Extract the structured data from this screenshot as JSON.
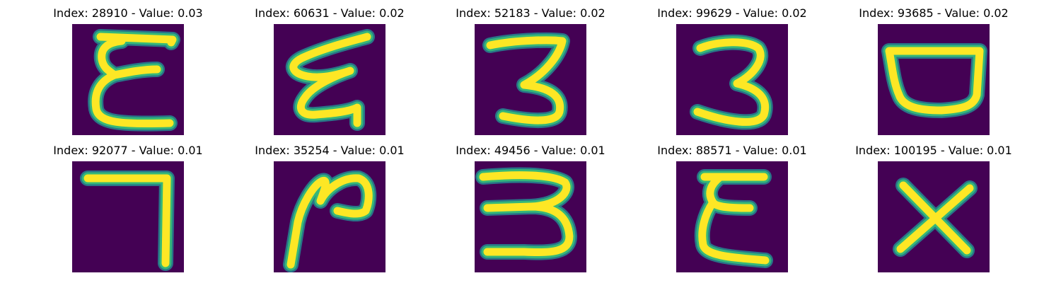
{
  "colors": {
    "background": "#440154",
    "stroke_core": "#fde725",
    "stroke_edge": "#35b779",
    "stroke_fringe": "#26828e"
  },
  "panels": [
    {
      "title": "Index: 28910 - Value: 0.03",
      "glyph": "E"
    },
    {
      "title": "Index: 60631 - Value: 0.02",
      "glyph": "E"
    },
    {
      "title": "Index: 52183 - Value: 0.02",
      "glyph": "3"
    },
    {
      "title": "Index: 99629 - Value: 0.02",
      "glyph": "3"
    },
    {
      "title": "Index: 93685 - Value: 0.02",
      "glyph": "D"
    },
    {
      "title": "Index: 92077 - Value: 0.01",
      "glyph": "7"
    },
    {
      "title": "Index: 35254 - Value: 0.01",
      "glyph": "2"
    },
    {
      "title": "Index: 49456 - Value: 0.01",
      "glyph": "3"
    },
    {
      "title": "Index: 88571 - Value: 0.01",
      "glyph": "E"
    },
    {
      "title": "Index: 100195 - Value: 0.01",
      "glyph": "X"
    }
  ]
}
